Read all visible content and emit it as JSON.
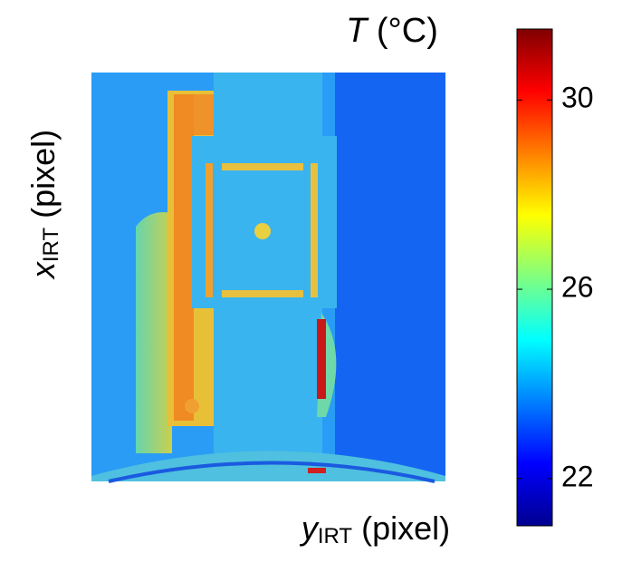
{
  "chart_data": {
    "type": "heatmap",
    "title": {
      "symbol": "T",
      "unit": "(°C)"
    },
    "x_label": {
      "main": "y",
      "sub": "IRT",
      "unit": "(pixel)"
    },
    "y_label": {
      "main": "x",
      "sub": "IRT",
      "unit": "(pixel)"
    },
    "colormap": "jet",
    "clim": [
      21,
      31.5
    ],
    "cticks": [
      22,
      26,
      30
    ]
  }
}
